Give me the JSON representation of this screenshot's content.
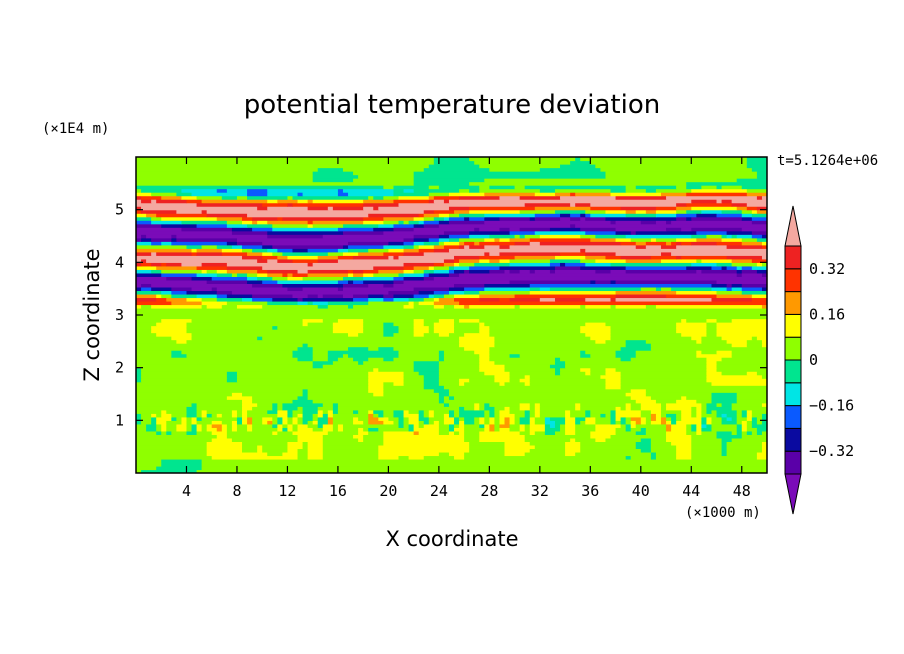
{
  "chart_data": {
    "type": "heatmap",
    "title": "potential temperature deviation",
    "xlabel": "X coordinate",
    "ylabel": "Z coordinate",
    "x_unit": "(×1000 m)",
    "y_unit": "(×1E4 m)",
    "time_label": "t=5.1264e+06",
    "xlim": [
      0,
      50
    ],
    "ylim": [
      0,
      6
    ],
    "x_ticks": [
      4,
      8,
      12,
      16,
      20,
      24,
      28,
      32,
      36,
      40,
      44,
      48
    ],
    "x_tick_labels": [
      "4",
      "8",
      "12",
      "16",
      "20",
      "24",
      "28",
      "32",
      "36",
      "40",
      "44",
      "48"
    ],
    "y_ticks": [
      1,
      2,
      3,
      4,
      5
    ],
    "y_tick_labels": [
      "1",
      "2",
      "3",
      "4",
      "5"
    ],
    "colorbar": {
      "levels": [
        -0.4,
        -0.32,
        -0.24,
        -0.16,
        -0.08,
        0,
        0.08,
        0.16,
        0.24,
        0.32,
        0.4
      ],
      "tick_values": [
        0.32,
        0.16,
        0,
        -0.16,
        -0.32
      ],
      "tick_labels": [
        "0.32",
        "0.16",
        "0",
        "−0.16",
        "−0.32"
      ],
      "colors": [
        "#7a0bb8",
        "#5a00a8",
        "#0a0aa0",
        "#0a5aff",
        "#00e5e5",
        "#00e58f",
        "#8fff00",
        "#ffff00",
        "#ff9900",
        "#ff3300",
        "#ee2222",
        "#f4a8a0"
      ]
    },
    "description_values": {
      "lower_region_z": [
        0,
        3.1
      ],
      "lower_region_range": [
        -0.08,
        0.08
      ],
      "upper_region_z": [
        3.1,
        5.5
      ],
      "upper_region_range": [
        -0.4,
        0.4
      ]
    }
  }
}
